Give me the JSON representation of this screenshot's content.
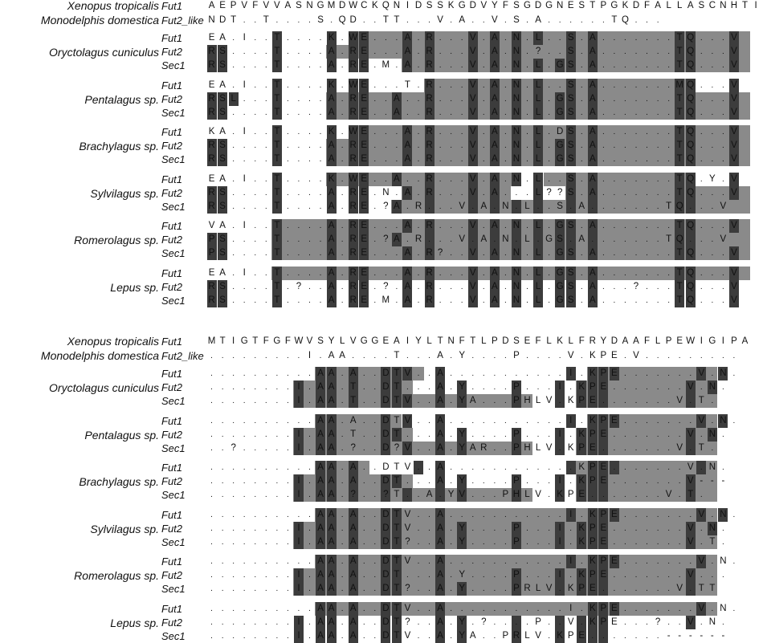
{
  "blocks": [
    {
      "header": [
        {
          "species": "Xenopus tropicalis",
          "gene": "Fut1",
          "seq": "AEPVFVVASNGMDWCKQNIDSSKGDVYFSGDGNESTPGKDFALLASCNHTI"
        },
        {
          "species": "Monodelphis domestica",
          "gene": "Fut2_like",
          "seq": "NDT..T....S.QD..TT...V.A..V.S.A......TQ..."
        }
      ],
      "groups": [
        {
          "species": "Oryctolagus cuniculus",
          "rows": [
            {
              "gene": "Fut1",
              "seq": "EA.I..T....K.WE...A.R...V.A.N.L..S.A.......TQ...V",
              "marks": "......d....d.dd...d.d...d.d.d.d..d.d.......dd...d",
              "bands": [
                [
                  14,
                  49
                ]
              ]
            },
            {
              "gene": "Fut2",
              "seq": "RS....T....A.RE...A.R...V.A.N.?..S.A.......TQ...V",
              "marks": "dd....d....d.dd...d.d...d.d.d....d.d.......dd...d",
              "bands": [
                [
                  11,
                  49
                ]
              ]
            },
            {
              "gene": "Sec1",
              "seq": "RS....T....A.RE.M.A.R...V.A.N.L.GS.A.......TQ...V",
              "marks": "dd....d....d.dd...d.d...d.d.d.d.dd.d.......dd...d",
              "bands": [
                [
                  18,
                  49
                ]
              ]
            }
          ]
        },
        {
          "species": "Pentalagus sp.",
          "rows": [
            {
              "gene": "Fut1",
              "seq": "EA.I..T....K.WE...T.R...V.A.N.L..S.A.......MQ...V",
              "marks": "......d....d.dd.....d...d.d.d.d..d.d.......dd...d",
              "bands": [
                [
                  20,
                  44
                ]
              ]
            },
            {
              "gene": "Fut2",
              "seq": "RSL...T....A.RE..A..R...V.A.N.L.GS.A.......TQ...V",
              "marks": "ddd...d....d.dd..d..d...d.d.d.d.dd.d.......dd...d",
              "bands": [
                [
                  11,
                  49
                ]
              ]
            },
            {
              "gene": "Sec1",
              "seq": "RS....T....A.RE..A..R...V.A.N.L.GS.A.......TQ...V",
              "marks": "dd....d....d.dd..d..d...d.d.d.d.dd.d.......dd...d",
              "bands": [
                [
                  11,
                  49
                ]
              ]
            }
          ]
        },
        {
          "species": "Brachylagus sp.",
          "rows": [
            {
              "gene": "Fut1",
              "seq": "KA.I..T....K.WE...A.R...V.A.N.L.DS.A.......TQ...V",
              "marks": "......d....d.dd...d.d...d.d.d.d..d.d.......dd...d",
              "bands": [
                [
                  14,
                  49
                ]
              ]
            },
            {
              "gene": "Fut2",
              "seq": "RS....T....A.RE...A.R...V.A.N.L.GS.A.......TQ...V",
              "marks": "dd....d....d.dd...d.d...d.d.d.d.dd.d.......dd...d",
              "bands": [
                [
                  11,
                  49
                ]
              ]
            },
            {
              "gene": "Sec1",
              "seq": "RS....T....A.RE...A.R...V.A.N.L.GS.A.......TQ...V",
              "marks": "dd....d....d.dd...d.d...d.d.d.d.dd.d.......dd...d",
              "bands": [
                [
                  11,
                  49
                ]
              ]
            }
          ]
        },
        {
          "species": "Sylvilagus sp.",
          "rows": [
            {
              "gene": "Fut1",
              "seq": "EA.I..T....K.WE..A..R...V.A.N.L..S.A.......TQ.Y.V",
              "marks": "......d....d.dd..d..d...d.d.d.d..d.d.......dd...d",
              "bands": [
                [
                  11,
                  28
                ],
                [
                  31,
                  44
                ]
              ]
            },
            {
              "gene": "Fut2",
              "seq": "RS....T....A.RE.N.A.R...V.A...L??S.A.......TQ...V",
              "marks": "dd....d....d.dd...d.d...d.d...d..d.d.......dd...d",
              "bands": [
                [
                  18,
                  27
                ],
                [
                  33,
                  49
                ]
              ]
            },
            {
              "gene": "Sec1",
              "seq": "RS....T....A.RE.?A.R...V.A.N.L..S.A.......TQ...V",
              "marks": "dd....d....d.dd..d..d...d.d.d.d..d.d.......dd...d",
              "bands": [
                [
                  17,
                  49
                ]
              ]
            }
          ]
        },
        {
          "species": "Romerolagus sp.",
          "rows": [
            {
              "gene": "Fut1",
              "seq": "VA.I..T....A.RE...A.R...V.A.N.L.GS.A.......TQ...V",
              "marks": "......d....d.dd...d.d...d.d.d.d.dd.d.......dd...d",
              "bands": [
                [
                  6,
                  49
                ]
              ]
            },
            {
              "gene": "Fut2",
              "seq": "PS....T....A.RE.?A.R...V.A.N.L.GS.A.......TQ...V",
              "marks": "dd....d....d.dd..d..d...d.d.d.d.dd.d.......dd...d",
              "bands": [
                [
                  6,
                  49
                ]
              ]
            },
            {
              "gene": "Sec1",
              "seq": "PS....T....A.RE...A.R?..V.A.N.L.GS.A.......TQ...V",
              "marks": "dd....d....d.dd...d.d...d.d.d.d.dd.d.......dd...d",
              "bands": [
                [
                  6,
                  49
                ]
              ]
            }
          ]
        },
        {
          "species": "Lepus sp.",
          "rows": [
            {
              "gene": "Fut1",
              "seq": "EA.I..T....A.RE...A.R...V.A.N.L.GS.A.......TQ...V",
              "marks": "......d....d.dd...d.d...d.d.d.d.dd.d.......dd...d",
              "bands": [
                [
                  6,
                  49
                ]
              ]
            },
            {
              "gene": "Fut2",
              "seq": "RS....T.?..A.RE.?.A.R...V.A.N.L.GS.A...?...TQ...V",
              "marks": "dd....d....d.dd...d.d...d.d.d.d.dd.d.......dd...d",
              "bands": []
            },
            {
              "gene": "Sec1",
              "seq": "RS....T....A.RE.M.A.R...V.A.N.L.GS.A.......TQ...V",
              "marks": "dd....d....d.dd...d.d...d.d.d.d.dd.d.......dd...d",
              "bands": []
            }
          ]
        }
      ]
    },
    {
      "header": [
        {
          "species": "Xenopus tropicalis",
          "gene": "Fut1",
          "seq": "MTIGTFGFWVSYLVGGEAIYLTNFTLPDSEFLKLFRYDAAFLPEWIGIPA"
        },
        {
          "species": "Monodelphis domestica",
          "gene": "Fut2_like",
          "seq": ".........I.AA....T...A.Y....P....V.KPE.V........."
        }
      ],
      "groups": [
        {
          "species": "Oryctolagus cuniculus",
          "rows": [
            {
              "gene": "Fut1",
              "seq": "..........AA.A..DTV..A...........I.KPE.......V.N.",
              "marks": "..........dd.d..ddd..d...........d.ddd.......d.d.",
              "bands": [
                [
                  10,
                  19
                ],
                [
                  35,
                  46
                ]
              ]
            },
            {
              "gene": "Fut2",
              "seq": "........I.AA.T..DT...A.Y....P...I.KPE.......V.N.",
              "marks": "........d.dd.d..dd...d.d....d...d.ddd.......d.d.",
              "bands": [
                [
                  8,
                  18
                ],
                [
                  34,
                  46
                ]
              ]
            },
            {
              "gene": "Sec1",
              "seq": "........I.AA.T..DTV..A.YA...PHLV.KPE.......V.T.",
              "marks": "........d.dd.d..ddd..d.d....d...d.ddd.......d...",
              "bands": [
                [
                  8,
                  29
                ],
                [
                  34,
                  46
                ]
              ]
            }
          ]
        },
        {
          "species": "Pentalagus sp.",
          "rows": [
            {
              "gene": "Fut1",
              "seq": "..........AA.A..DTV..A...........I.KPE.......V.N.",
              "marks": "..........dd....d.d..d...........d.ddd.......d.d.",
              "bands": [
                [
                  10,
                  17
                ],
                [
                  35,
                  46
                ]
              ]
            },
            {
              "gene": "Fut2",
              "seq": "........I.AA.T..DT...A.Y....P...I.KPE.......V.N.",
              "marks": "........d.dd....dd...d.d....d...d.ddd.......d.d.",
              "bands": [
                [
                  8,
                  18
                ],
                [
                  34,
                  46
                ]
              ]
            },
            {
              "gene": "Sec1",
              "seq": "..?.....I.AA.?..D?V..A.YAR..PHLV.KPE.......V.T.",
              "marks": "........d.dd....d.d..d.d....d...d.ddd.......d...",
              "bands": [
                [
                  8,
                  29
                ],
                [
                  34,
                  46
                ]
              ]
            }
          ]
        },
        {
          "species": "Brachylagus sp.",
          "rows": [
            {
              "gene": "Fut1",
              "seq": "..........AA.A..DTV..A............KPE.......V.N.",
              "marks": "..........dd.d.....d.d...........d.ddd.......d...",
              "bands": [
                [
                  10,
                  14
                ],
                [
                  34,
                  46
                ]
              ]
            },
            {
              "gene": "Fut2",
              "seq": "........I.AA.A..DT...A.Y....P...I.KPE.......V---",
              "marks": "........d.dd.d..dd...d.d....d...d.ddd.......d...",
              "bands": [
                [
                  8,
                  18
                ],
                [
                  34,
                  46
                ]
              ]
            },
            {
              "gene": "Sec1",
              "seq": "........I.AA.?..?T..A.YV...PHLV.KPE.......V.T.",
              "marks": "........d.dd.d..d.d..d.d....d...d.ddd.......d...",
              "bands": [
                [
                  8,
                  29
                ],
                [
                  34,
                  46
                ]
              ]
            }
          ]
        },
        {
          "species": "Sylvilagus sp.",
          "rows": [
            {
              "gene": "Fut1",
              "seq": "..........AA.A..DTV..A...........I.KPE.......V.N.",
              "marks": "..........dd.d..dd...d...........d.ddd.......d.d.",
              "bands": [
                [
                  10,
                  46
                ]
              ]
            },
            {
              "gene": "Fut2",
              "seq": "........I.AA.A..DTV..A.Y....P...I.KPE.......V.N.",
              "marks": "........d.dd.d..dd...d.d....d...d.ddd.......d.d.",
              "bands": [
                [
                  8,
                  46
                ]
              ]
            },
            {
              "gene": "Sec1",
              "seq": "........I.AA.A..DT?..A.Y....P...I.KPE.......V.T.",
              "marks": "........d.dd.d..dd...d.d....d...d.ddd.......d...",
              "bands": [
                [
                  8,
                  46
                ]
              ]
            }
          ]
        },
        {
          "species": "Romerolagus sp.",
          "rows": [
            {
              "gene": "Fut1",
              "seq": "..........AA.A..DTV..A...........I.KPE.......V.N.",
              "marks": "..........dd.d..dd...d...........d.ddd.......d...",
              "bands": [
                [
                  10,
                  46
                ]
              ]
            },
            {
              "gene": "Fut2",
              "seq": "........I.AA.A..DT...A.Y....P...I.KPE.......V...",
              "marks": "........d.dd.d..dd...d......d...d.ddd.......d...",
              "bands": [
                [
                  8,
                  46
                ]
              ]
            },
            {
              "gene": "Sec1",
              "seq": "........I.AA.A..DT?..A.Y....PRLV.KPE.......V.TT",
              "marks": "........d.dd.d..dd...d.d....d...d.ddd.......d...",
              "bands": [
                [
                  8,
                  46
                ]
              ]
            }
          ]
        },
        {
          "species": "Lepus sp.",
          "rows": [
            {
              "gene": "Fut1",
              "seq": "..........AA.A..DTV..A...........I.KPE.......V.N.",
              "marks": "..........dd.d..dd...d.............ddd.......d...",
              "bands": [
                [
                  10,
                  46
                ]
              ]
            },
            {
              "gene": "Fut2",
              "seq": "........I.AA.A..DT?..A.Y.?....P..V.KPE...?..V.N.",
              "marks": "........d.dd.d..dd...d.d....d...d.ddd.......d...",
              "bands": []
            },
            {
              "gene": "Sec1",
              "seq": "........I.AA.A..DTV..A.YA..PRLV.KPE.......------",
              "marks": "........d.dd.d..dd...d.d....d...d.ddd..........",
              "bands": []
            }
          ]
        }
      ]
    }
  ]
}
